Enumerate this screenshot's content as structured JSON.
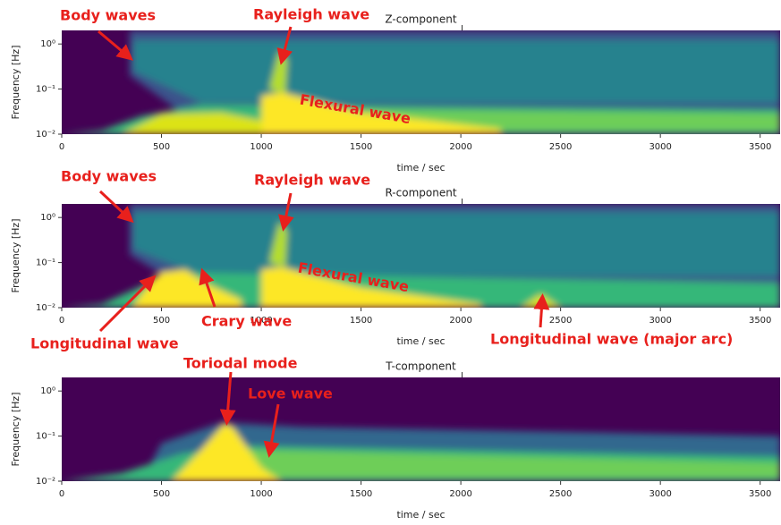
{
  "chart_data": [
    {
      "type": "spectrogram",
      "title": "Z-component",
      "xlabel": "time / sec",
      "ylabel": "Frequency [Hz]",
      "xlim": [
        0,
        3600
      ],
      "xticks": [
        0,
        500,
        1000,
        1500,
        2000,
        2500,
        3000,
        3500
      ],
      "yscale": "log",
      "ylim": [
        0.01,
        2
      ],
      "yticks": [
        {
          "value": 0.01,
          "label": "10⁻²"
        },
        {
          "value": 0.1,
          "label": "10⁻¹"
        },
        {
          "value": 1,
          "label": "10⁰"
        }
      ],
      "annotation_color": "#e8201c",
      "annotations": [
        "Body waves",
        "Rayleigh wave",
        "Flexural wave"
      ]
    },
    {
      "type": "spectrogram",
      "title": "R-component",
      "xlabel": "time / sec",
      "ylabel": "Frequency [Hz]",
      "xlim": [
        0,
        3600
      ],
      "xticks": [
        0,
        500,
        1000,
        1500,
        2000,
        2500,
        3000,
        3500
      ],
      "yscale": "log",
      "ylim": [
        0.01,
        2
      ],
      "yticks": [
        {
          "value": 0.01,
          "label": "10⁻²"
        },
        {
          "value": 0.1,
          "label": "10⁻¹"
        },
        {
          "value": 1,
          "label": "10⁰"
        }
      ],
      "annotation_color": "#e8201c",
      "annotations": [
        "Body waves",
        "Rayleigh wave",
        "Flexural wave",
        "Crary wave",
        "Longitudinal wave",
        "Longitudinal wave (major arc)"
      ]
    },
    {
      "type": "spectrogram",
      "title": "T-component",
      "xlabel": "time / sec",
      "ylabel": "Frequency [Hz]",
      "xlim": [
        0,
        3600
      ],
      "xticks": [
        0,
        500,
        1000,
        1500,
        2000,
        2500,
        3000,
        3500
      ],
      "yscale": "log",
      "ylim": [
        0.01,
        2
      ],
      "yticks": [
        {
          "value": 0.01,
          "label": "10⁻²"
        },
        {
          "value": 0.1,
          "label": "10⁻¹"
        },
        {
          "value": 1,
          "label": "10⁰"
        }
      ],
      "annotation_color": "#e8201c",
      "annotations": [
        "Toriodal mode",
        "Love wave"
      ]
    }
  ]
}
